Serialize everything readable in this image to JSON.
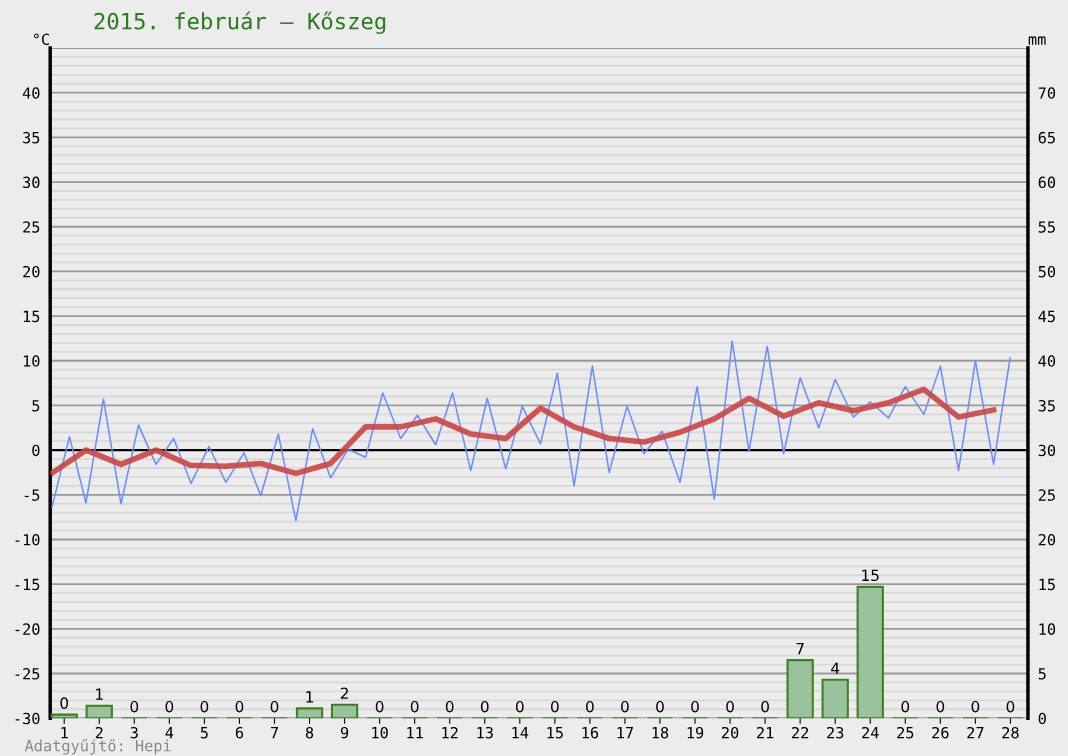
{
  "chart_data": {
    "type": "line",
    "title": "2015. február – Kőszeg",
    "ylabel": "°C",
    "y2label": "mm",
    "x": [
      1,
      2,
      3,
      4,
      5,
      6,
      7,
      8,
      9,
      10,
      11,
      12,
      13,
      14,
      15,
      16,
      17,
      18,
      19,
      20,
      21,
      22,
      23,
      24,
      25,
      26,
      27,
      28
    ],
    "series": [
      {
        "type": "bar",
        "axis": "y2",
        "color": "#99c29c",
        "colors": [
          "#99c29c",
          "#99c29c",
          "#3f7f24",
          "#3f7f24",
          "#3f7f24",
          "#3f7f24",
          "#3f7f24",
          "#99c29c",
          "#99c29c",
          "#3f7f24",
          "#3f7f24",
          "#3f7f24",
          "#3f7f24",
          "#3f7f24",
          "#3f7f24",
          "#3f7f24",
          "#3f7f24",
          "#3f7f24",
          "#3f7f24",
          "#3f7f24",
          "#3f7f24",
          "#99c29c",
          "#99c29c",
          "#99c29c",
          "#3f7f24",
          "#3f7f24",
          "#3f7f24",
          "#3f7f24"
        ],
        "values": [
          0.4,
          1.4,
          0,
          0,
          0,
          0,
          0,
          1.1,
          1.5,
          0,
          0,
          0,
          0,
          0,
          0,
          0,
          0,
          0,
          0,
          0,
          0,
          6.5,
          4.3,
          14.7,
          0,
          0,
          0,
          0
        ],
        "value_labels": [
          "0",
          "1",
          "0",
          "0",
          "0",
          "0",
          "0",
          "1",
          "2",
          "0",
          "0",
          "0",
          "0",
          "0",
          "0",
          "0",
          "0",
          "0",
          "0",
          "0",
          "0",
          "7",
          "4",
          "15",
          "0",
          "0",
          "0",
          "0"
        ]
      },
      {
        "color": "#6b8cff",
        "x": [
          0.65,
          1.15,
          1.62,
          2.12,
          2.62,
          3.12,
          3.62,
          4.12,
          4.62,
          5.13,
          5.61,
          6.13,
          6.61,
          7.11,
          7.61,
          8.09,
          8.6,
          9.1,
          9.6,
          10.09,
          10.6,
          11.08,
          11.6,
          12.08,
          12.6,
          13.07,
          13.6,
          14.07,
          14.59,
          15.07,
          15.55,
          16.07,
          16.55,
          17.06,
          17.54,
          18.06,
          18.57,
          19.06,
          19.55,
          20.06,
          20.54,
          21.06,
          21.53,
          22.0,
          22.53,
          23.0,
          23.52,
          24.0,
          24.52,
          25.0,
          25.53,
          26.0,
          26.52,
          27.0,
          27.52,
          27.99
        ],
        "values": [
          -6.4,
          1.5,
          -5.9,
          5.7,
          -6.0,
          2.8,
          -1.6,
          1.3,
          -3.7,
          0.4,
          -3.6,
          -0.3,
          -5.1,
          1.8,
          -7.9,
          2.4,
          -3.1,
          0.1,
          -0.8,
          6.4,
          1.3,
          3.9,
          0.6,
          6.4,
          -2.3,
          5.8,
          -2.1,
          4.9,
          0.7,
          8.6,
          -4.0,
          9.4,
          -2.5,
          4.9,
          -0.4,
          2.1,
          -3.6,
          7.1,
          -5.5,
          12.2,
          -0.1,
          11.6,
          -0.4,
          8.1,
          2.5,
          7.9,
          3.7,
          5.4,
          3.6,
          7.1,
          4.0,
          9.4,
          -2.3,
          10.0,
          -1.6,
          10.3
        ]
      },
      {
        "color": "#cc4444",
        "x": [
          0.68,
          1.62,
          2.62,
          3.62,
          4.6,
          5.6,
          6.61,
          7.61,
          8.6,
          9.6,
          10.6,
          11.6,
          12.6,
          13.6,
          14.59,
          15.55,
          16.55,
          17.54,
          18.57,
          19.55,
          20.54,
          21.53,
          22.53,
          23.52,
          24.52,
          25.53,
          26.52,
          27.52
        ],
        "values": [
          -2.5,
          0,
          -1.6,
          0,
          -1.7,
          -1.8,
          -1.5,
          -2.6,
          -1.5,
          2.6,
          2.6,
          3.5,
          1.8,
          1.3,
          4.7,
          2.6,
          1.3,
          0.9,
          2.0,
          3.5,
          5.8,
          3.8,
          5.3,
          4.4,
          5.3,
          6.8,
          3.7,
          4.5
        ]
      }
    ],
    "xlim": [
      0.6,
      28.5
    ],
    "xticks": [
      1,
      2,
      3,
      4,
      5,
      6,
      7,
      8,
      9,
      10,
      11,
      12,
      13,
      14,
      15,
      16,
      17,
      18,
      19,
      20,
      21,
      22,
      23,
      24,
      25,
      26,
      27,
      28
    ],
    "ylim": [
      -30,
      45
    ],
    "yticks": [
      -30,
      -25,
      -20,
      -15,
      -10,
      -5,
      0,
      5,
      10,
      15,
      20,
      25,
      30,
      35,
      40
    ],
    "y2lim": [
      0,
      75
    ],
    "y2ticks": [
      0,
      5,
      10,
      15,
      20,
      25,
      30,
      35,
      40,
      45,
      50,
      55,
      60,
      65,
      70
    ],
    "grid": "y",
    "legend": false,
    "marker": "none",
    "line_style": "solid",
    "ref_lines": [
      {
        "axis": "y",
        "value": 0,
        "color": "#000000"
      }
    ],
    "annotations": [
      "Adatgyűjtő: Hepi"
    ]
  }
}
